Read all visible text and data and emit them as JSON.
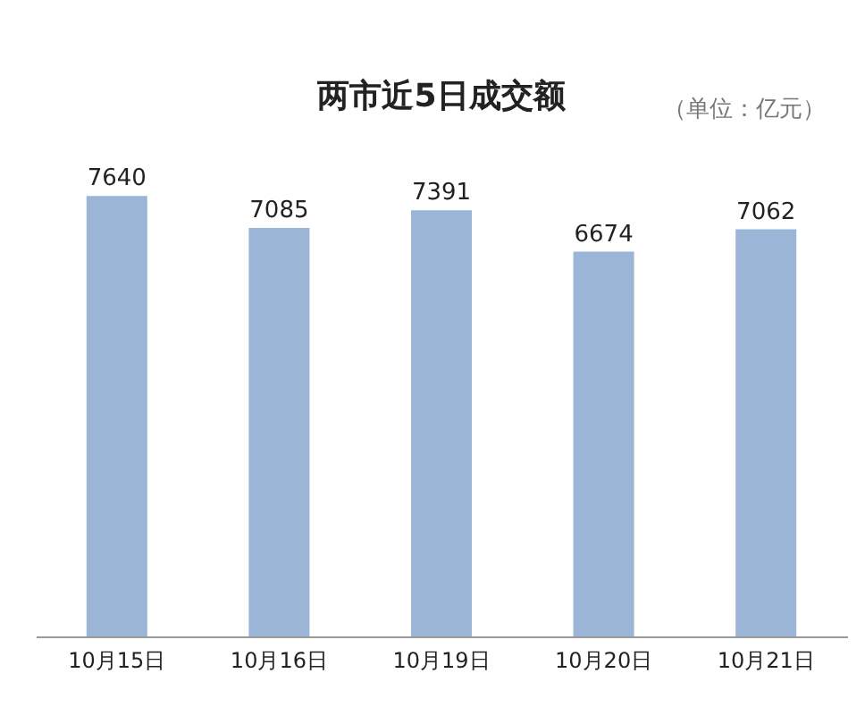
{
  "chart_data": {
    "type": "bar",
    "title": "两市近5日成交额",
    "subtitle": "（单位：亿元）",
    "categories": [
      "10月15日",
      "10月16日",
      "10月19日",
      "10月20日",
      "10月21日"
    ],
    "values": [
      7640,
      7085,
      7391,
      6674,
      7062
    ],
    "color": "#9bb5d6",
    "data_labels": true
  }
}
